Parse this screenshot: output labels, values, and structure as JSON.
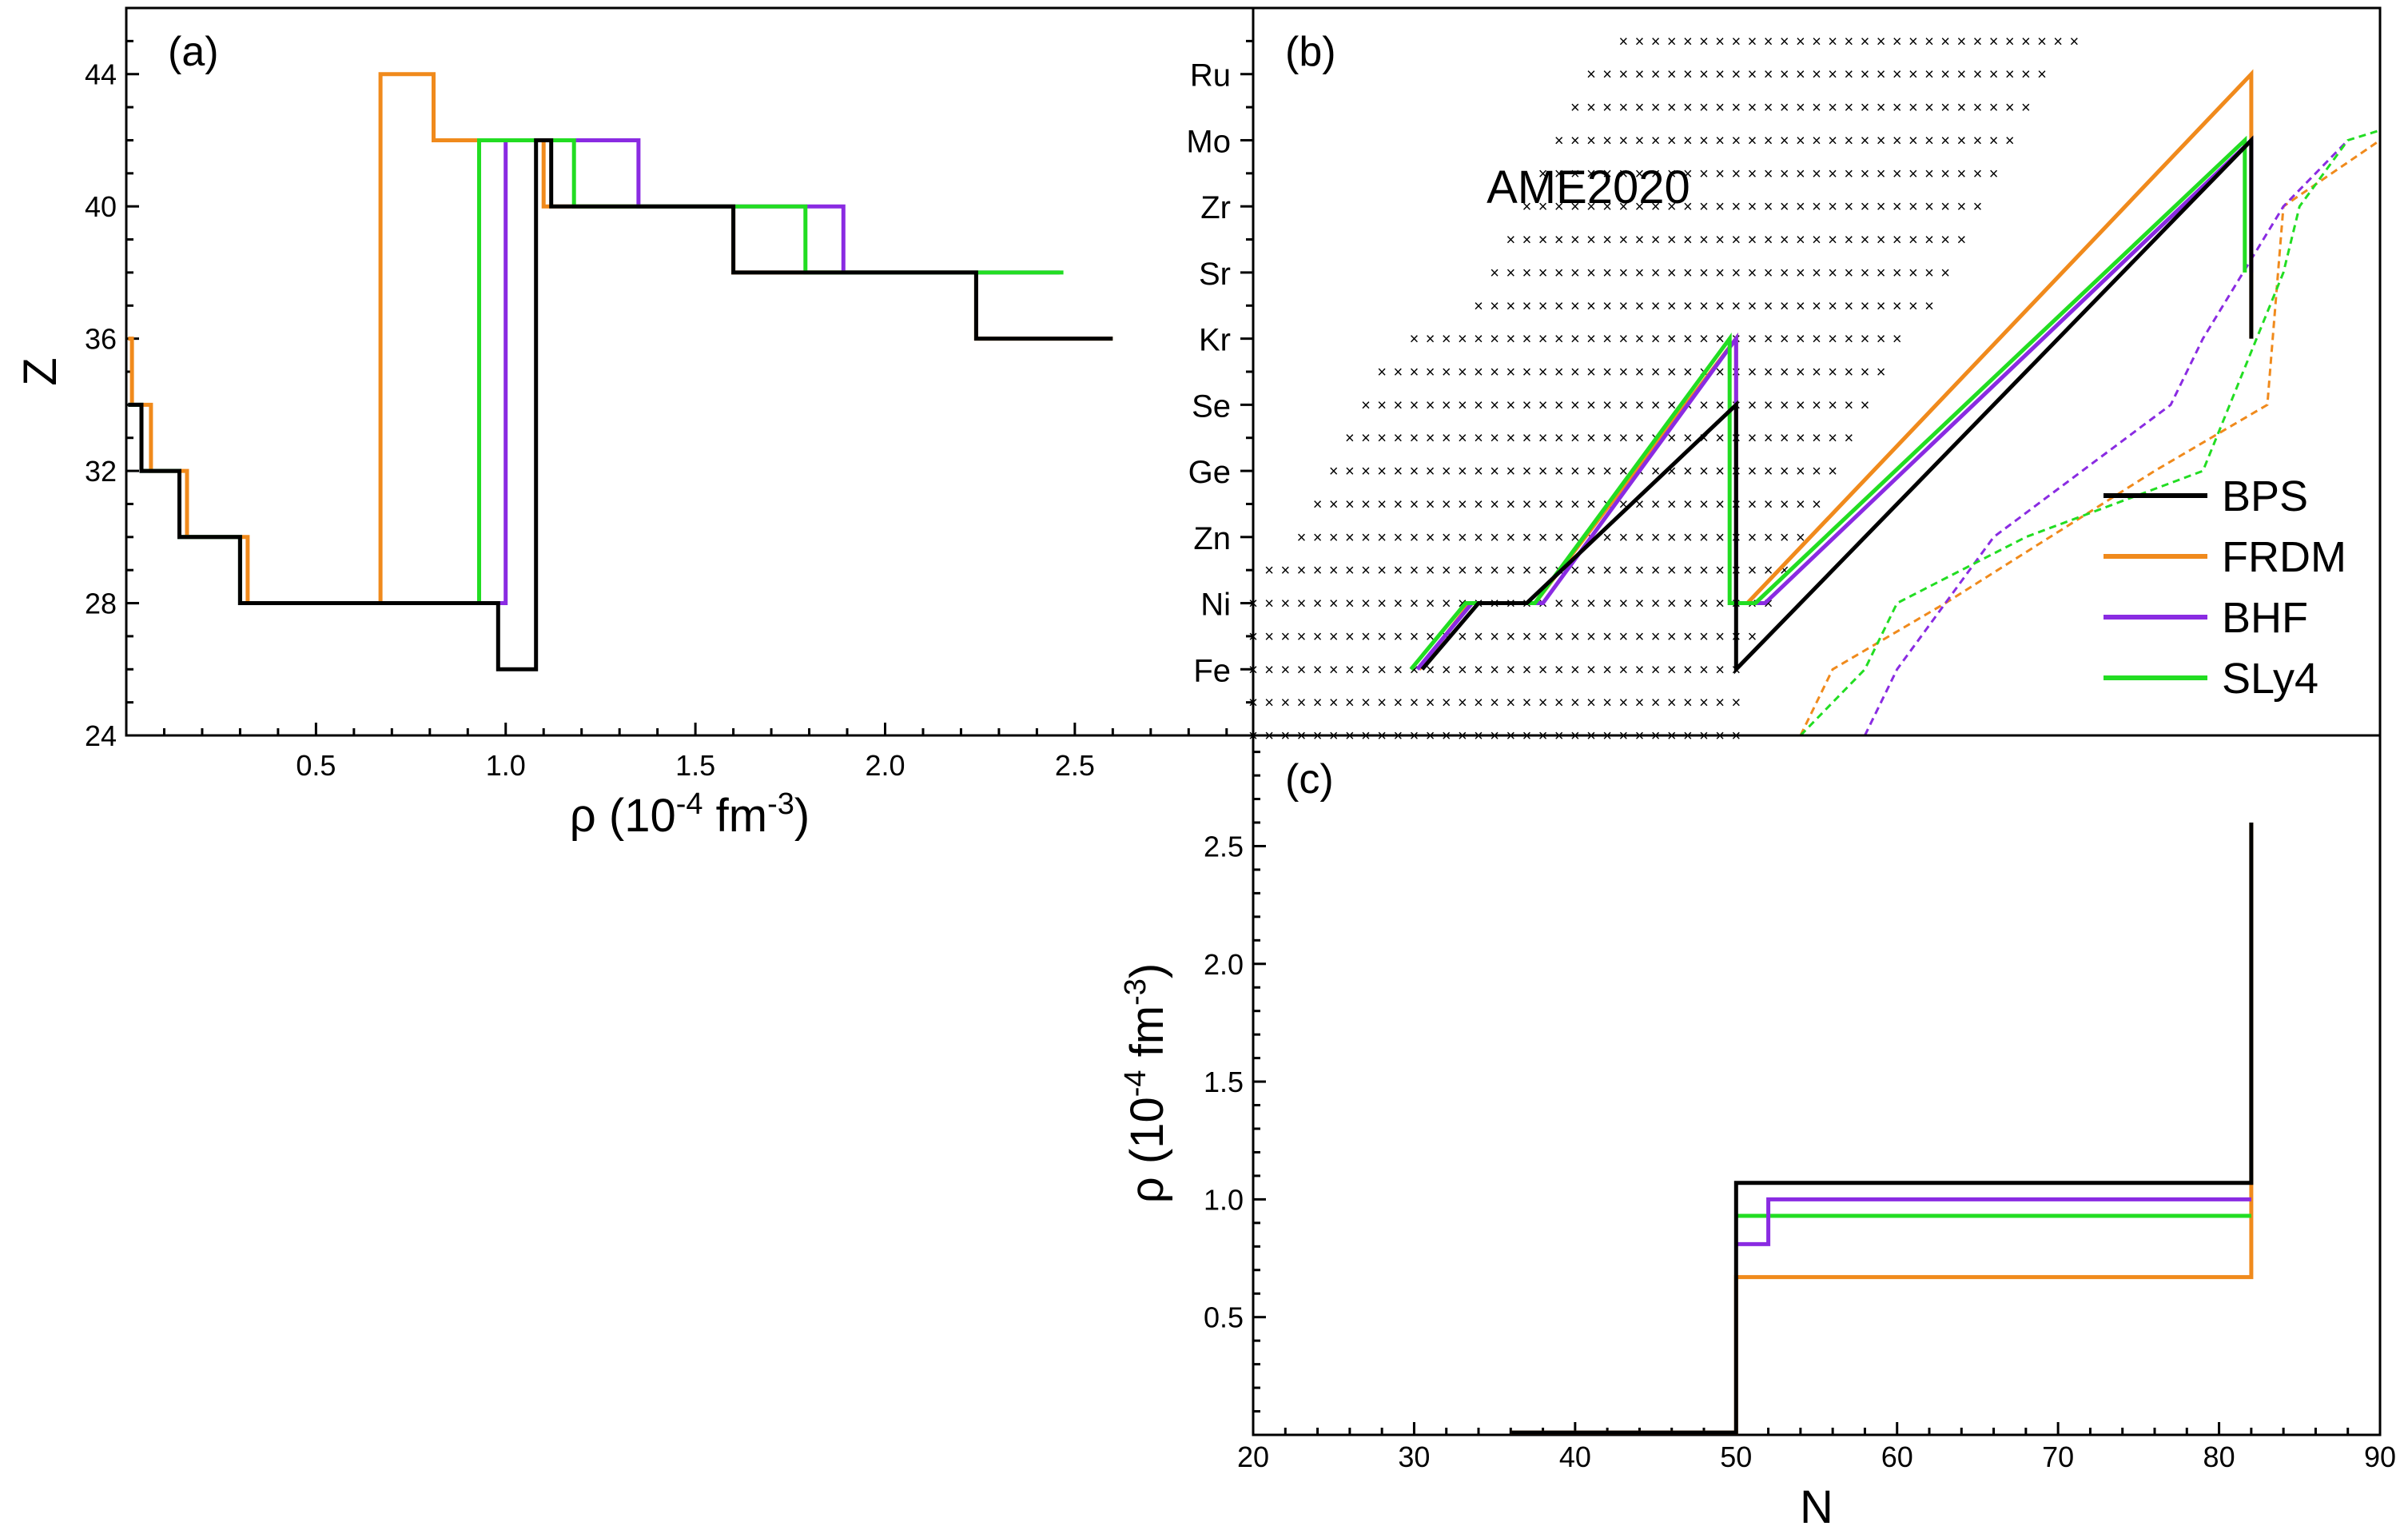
{
  "colors": {
    "BPS": "#000000",
    "FRDM": "#f08a1c",
    "BHF": "#8a2be2",
    "SLy4": "#22dd22",
    "grid_cross": "#555555"
  },
  "chart_data": [
    {
      "panel": "a",
      "panel_label": "(a)",
      "type": "line",
      "step": true,
      "xlabel": "ρ (10-4 fm-3)",
      "xlabel_parts": {
        "base": "ρ (10",
        "exp1": "-4",
        "mid": " fm",
        "exp2": "-3",
        "end": ")"
      },
      "ylabel": "Z",
      "xlim": [
        0,
        2.97
      ],
      "ylim": [
        24,
        46
      ],
      "x_ticks": [
        0.5,
        1.0,
        1.5,
        2.0,
        2.5
      ],
      "x_tick_labels": [
        "0.5",
        "1.0",
        "1.5",
        "2.0",
        "2.5"
      ],
      "y_ticks": [
        24,
        28,
        32,
        36,
        40,
        44
      ],
      "y_tick_labels": [
        "24",
        "28",
        "32",
        "36",
        "40",
        "44"
      ],
      "series": [
        {
          "name": "FRDM",
          "points": [
            [
              0.005,
              36
            ],
            [
              0.015,
              36
            ],
            [
              0.015,
              34
            ],
            [
              0.065,
              34
            ],
            [
              0.065,
              32
            ],
            [
              0.16,
              32
            ],
            [
              0.16,
              30
            ],
            [
              0.32,
              30
            ],
            [
              0.32,
              28
            ],
            [
              0.67,
              28
            ],
            [
              0.67,
              44
            ],
            [
              0.81,
              44
            ],
            [
              0.81,
              42
            ],
            [
              1.1,
              42
            ],
            [
              1.1,
              40
            ],
            [
              1.6,
              40
            ],
            [
              1.6,
              38
            ],
            [
              2.24,
              38
            ],
            [
              2.24,
              36
            ],
            [
              2.6,
              36
            ]
          ]
        },
        {
          "name": "BHF",
          "points": [
            [
              0.005,
              34
            ],
            [
              0.04,
              34
            ],
            [
              0.04,
              32
            ],
            [
              0.14,
              32
            ],
            [
              0.14,
              30
            ],
            [
              0.3,
              30
            ],
            [
              0.3,
              28
            ],
            [
              1.0,
              28
            ],
            [
              1.0,
              42
            ],
            [
              1.35,
              42
            ],
            [
              1.35,
              40
            ],
            [
              1.89,
              40
            ],
            [
              1.89,
              38
            ],
            [
              2.46,
              38
            ]
          ]
        },
        {
          "name": "SLy4",
          "points": [
            [
              0.005,
              34
            ],
            [
              0.04,
              34
            ],
            [
              0.04,
              32
            ],
            [
              0.14,
              32
            ],
            [
              0.14,
              30
            ],
            [
              0.3,
              30
            ],
            [
              0.3,
              28
            ],
            [
              0.93,
              28
            ],
            [
              0.93,
              42
            ],
            [
              1.18,
              42
            ],
            [
              1.18,
              40
            ],
            [
              1.79,
              40
            ],
            [
              1.79,
              38
            ],
            [
              2.47,
              38
            ]
          ]
        },
        {
          "name": "BPS",
          "points": [
            [
              0.005,
              34
            ],
            [
              0.04,
              34
            ],
            [
              0.04,
              32
            ],
            [
              0.14,
              32
            ],
            [
              0.14,
              30
            ],
            [
              0.3,
              30
            ],
            [
              0.3,
              28
            ],
            [
              0.98,
              28
            ],
            [
              0.98,
              26
            ],
            [
              1.08,
              26
            ],
            [
              1.08,
              42
            ],
            [
              1.12,
              42
            ],
            [
              1.12,
              40
            ],
            [
              1.6,
              40
            ],
            [
              1.6,
              38
            ],
            [
              2.24,
              38
            ],
            [
              2.24,
              36
            ],
            [
              2.6,
              36
            ]
          ]
        }
      ]
    },
    {
      "panel": "b",
      "panel_label": "(b)",
      "type": "line",
      "xlim": [
        20,
        90
      ],
      "ylim": [
        24,
        46
      ],
      "y_ticks": [
        26,
        28,
        30,
        32,
        34,
        36,
        38,
        40,
        42,
        44
      ],
      "y_tick_labels": [
        "Fe",
        "Ni",
        "Zn",
        "Ge",
        "Se",
        "Kr",
        "Sr",
        "Zr",
        "Mo",
        "Ru"
      ],
      "annotation": "AME2020",
      "legend": {
        "position": "right",
        "entries": [
          "BPS",
          "FRDM",
          "BHF",
          "SLy4"
        ]
      },
      "ame2020_rows": [
        {
          "Z": 24,
          "N": [
            20,
            50
          ]
        },
        {
          "Z": 25,
          "N": [
            20,
            50
          ]
        },
        {
          "Z": 26,
          "N": [
            20,
            50
          ]
        },
        {
          "Z": 27,
          "N": [
            20,
            51
          ]
        },
        {
          "Z": 28,
          "N": [
            20,
            52
          ]
        },
        {
          "Z": 29,
          "N": [
            21,
            53
          ]
        },
        {
          "Z": 30,
          "N": [
            23,
            54
          ]
        },
        {
          "Z": 31,
          "N": [
            24,
            55
          ]
        },
        {
          "Z": 32,
          "N": [
            25,
            56
          ]
        },
        {
          "Z": 33,
          "N": [
            26,
            57
          ]
        },
        {
          "Z": 34,
          "N": [
            27,
            58
          ]
        },
        {
          "Z": 35,
          "N": [
            28,
            59
          ]
        },
        {
          "Z": 36,
          "N": [
            30,
            60
          ]
        },
        {
          "Z": 37,
          "N": [
            34,
            62
          ]
        },
        {
          "Z": 38,
          "N": [
            35,
            63
          ]
        },
        {
          "Z": 39,
          "N": [
            36,
            64
          ]
        },
        {
          "Z": 40,
          "N": [
            37,
            65
          ]
        },
        {
          "Z": 41,
          "N": [
            38,
            66
          ]
        },
        {
          "Z": 42,
          "N": [
            39,
            67
          ]
        },
        {
          "Z": 43,
          "N": [
            40,
            68
          ]
        },
        {
          "Z": 44,
          "N": [
            41,
            69
          ]
        },
        {
          "Z": 45,
          "N": [
            43,
            71
          ]
        }
      ],
      "series": [
        {
          "name": "FRDM",
          "points": [
            [
              30.3,
              26
            ],
            [
              33.5,
              28
            ],
            [
              37.5,
              28
            ],
            [
              50,
              36
            ],
            [
              50,
              28
            ],
            [
              50.7,
              28
            ],
            [
              82,
              44
            ],
            [
              82,
              36
            ]
          ]
        },
        {
          "name": "BHF",
          "points": [
            [
              30.2,
              26
            ],
            [
              33.6,
              28
            ],
            [
              38,
              28
            ],
            [
              50,
              36
            ],
            [
              50,
              28
            ],
            [
              51.8,
              28
            ],
            [
              82,
              42
            ],
            [
              82,
              38
            ]
          ]
        },
        {
          "name": "SLy4",
          "points": [
            [
              29.8,
              26
            ],
            [
              33.2,
              28
            ],
            [
              37.5,
              28
            ],
            [
              49.6,
              36
            ],
            [
              49.6,
              28
            ],
            [
              51.2,
              28
            ],
            [
              81.6,
              42
            ],
            [
              81.6,
              38
            ]
          ]
        },
        {
          "name": "BPS",
          "points": [
            [
              30.5,
              26
            ],
            [
              34,
              28
            ],
            [
              37,
              28
            ],
            [
              50,
              34
            ],
            [
              50,
              26
            ],
            [
              82,
              42
            ],
            [
              82,
              36
            ]
          ]
        }
      ],
      "dashed_series": [
        {
          "name": "FRDM",
          "points": [
            [
              54,
              24
            ],
            [
              56,
              26
            ],
            [
              63,
              28
            ],
            [
              76,
              32
            ],
            [
              83,
              34
            ],
            [
              84,
              40
            ],
            [
              90,
              42
            ]
          ]
        },
        {
          "name": "BHF",
          "points": [
            [
              58,
              24
            ],
            [
              60,
              26
            ],
            [
              66,
              30
            ],
            [
              77,
              34
            ],
            [
              79,
              36
            ],
            [
              84,
              40
            ],
            [
              88,
              42
            ]
          ]
        },
        {
          "name": "SLy4",
          "points": [
            [
              54,
              24
            ],
            [
              58,
              26
            ],
            [
              60,
              28
            ],
            [
              68,
              30
            ],
            [
              79,
              32
            ],
            [
              84,
              38
            ],
            [
              85,
              40
            ],
            [
              88,
              42
            ],
            [
              90,
              42.3
            ]
          ]
        }
      ]
    },
    {
      "panel": "c",
      "panel_label": "(c)",
      "type": "line",
      "step": true,
      "xlabel": "N",
      "ylabel": "ρ (10-4 fm-3)",
      "ylabel_parts": {
        "base": "ρ (10",
        "exp1": "-4",
        "mid": " fm",
        "exp2": "-3",
        "end": ")"
      },
      "xlim": [
        20,
        90
      ],
      "ylim": [
        0,
        2.97
      ],
      "x_ticks": [
        20,
        30,
        40,
        50,
        60,
        70,
        80,
        90
      ],
      "x_tick_labels": [
        "20",
        "30",
        "40",
        "50",
        "60",
        "70",
        "80",
        "90"
      ],
      "y_ticks": [
        0.5,
        1.0,
        1.5,
        2.0,
        2.5
      ],
      "y_tick_labels": [
        "0.5",
        "1.0",
        "1.5",
        "2.0",
        "2.5"
      ],
      "series": [
        {
          "name": "FRDM",
          "points": [
            [
              36,
              0.01
            ],
            [
              50,
              0.01
            ],
            [
              50,
              0.67
            ],
            [
              82,
              0.67
            ],
            [
              82,
              2.6
            ]
          ]
        },
        {
          "name": "SLy4",
          "points": [
            [
              50,
              0.93
            ],
            [
              82,
              0.93
            ]
          ]
        },
        {
          "name": "BHF",
          "points": [
            [
              50,
              0.81
            ],
            [
              52,
              0.81
            ],
            [
              52,
              1.0
            ],
            [
              82,
              1.0
            ]
          ]
        },
        {
          "name": "BPS",
          "points": [
            [
              36,
              0.01
            ],
            [
              50,
              0.01
            ],
            [
              50,
              1.07
            ],
            [
              82,
              1.07
            ],
            [
              82,
              2.6
            ]
          ]
        }
      ]
    }
  ]
}
